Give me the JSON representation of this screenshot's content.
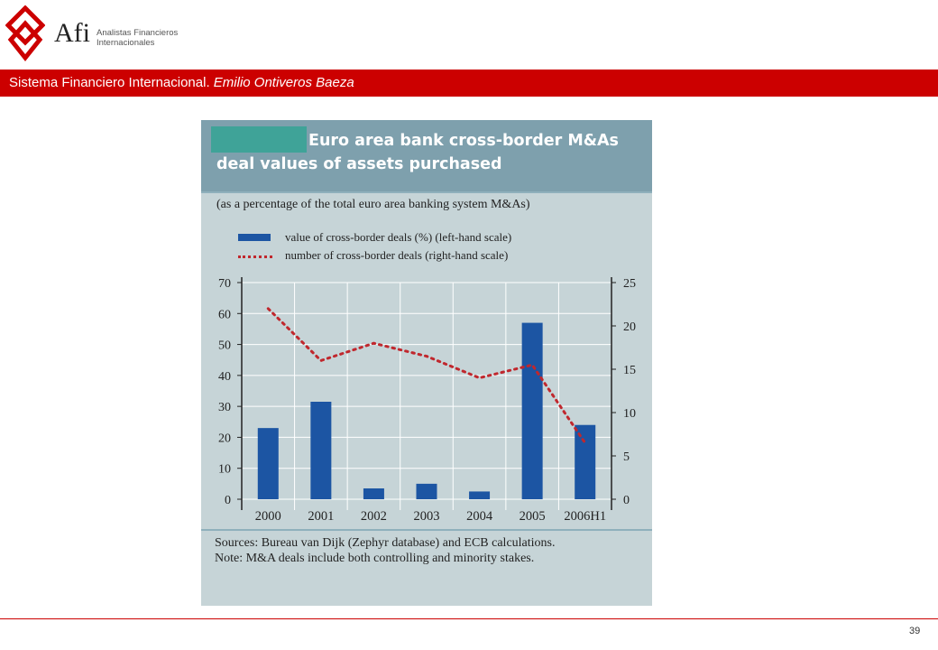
{
  "header": {
    "logo_icon": "afi-diamond-logo",
    "brand_mark": "Afi",
    "brand_line1": "Analistas Financieros",
    "brand_line2": "Internacionales",
    "title_main": "Sistema Financiero Internacional. ",
    "title_author": "Emilio Ontiveros Baeza",
    "accent_color": "#cc0000"
  },
  "figure": {
    "title": "Euro area bank cross-border M&As\ndeal values of assets purchased",
    "subtitle": "(as a percentage of the total euro area banking system M&As)",
    "notes": [
      "Sources: Bureau van Dijk (Zephyr database) and ECB calculations.",
      "Note: M&A deals include both controlling and minority stakes."
    ]
  },
  "chart_data": {
    "type": "bar",
    "categories": [
      "2000",
      "2001",
      "2002",
      "2003",
      "2004",
      "2005",
      "2006H1"
    ],
    "series": [
      {
        "name": "value of cross-border deals (%) (left-hand scale)",
        "type": "bar",
        "axis": "left",
        "color": "#1c55a3",
        "values": [
          23,
          31.5,
          3.5,
          5,
          2.5,
          57,
          24
        ]
      },
      {
        "name": "number of cross-border deals (right-hand scale)",
        "type": "line",
        "style": "dotted",
        "axis": "right",
        "color": "#c0272d",
        "values": [
          22,
          16,
          18,
          16.5,
          14,
          15.5,
          6.5
        ]
      }
    ],
    "y_left": {
      "ylim": [
        0,
        70
      ],
      "ticks": [
        "0",
        "10",
        "20",
        "30",
        "40",
        "50",
        "60",
        "70"
      ]
    },
    "y_right": {
      "ylim": [
        0,
        25
      ],
      "ticks": [
        "0",
        "5",
        "10",
        "15",
        "20",
        "25"
      ]
    },
    "grid": true,
    "legend_position": "top"
  },
  "footer": {
    "page_number": "39"
  }
}
